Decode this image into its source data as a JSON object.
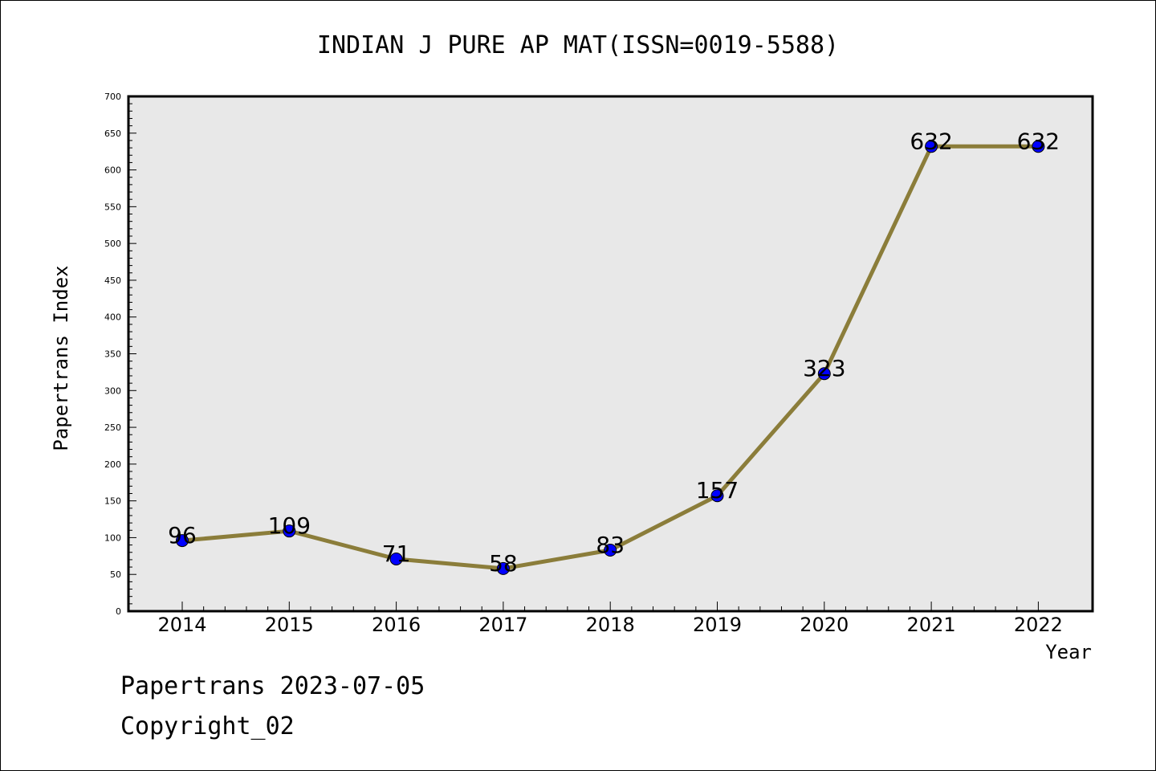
{
  "chart_data": {
    "type": "line",
    "title": "INDIAN J PURE AP MAT(ISSN=0019-5588)",
    "xlabel": "Year",
    "ylabel": "Papertrans Index",
    "categories": [
      "2014",
      "2015",
      "2016",
      "2017",
      "2018",
      "2019",
      "2020",
      "2021",
      "2022"
    ],
    "values": [
      96,
      109,
      71,
      58,
      83,
      157,
      323,
      632,
      632
    ],
    "data_labels": [
      "96",
      "109",
      "71",
      "58",
      "83",
      "157",
      "323",
      "632",
      "632"
    ],
    "ylim": [
      0,
      700
    ],
    "yticks": [
      "0",
      "50",
      "100",
      "150",
      "200",
      "250",
      "300",
      "350",
      "400",
      "450",
      "500",
      "550",
      "600",
      "650",
      "700"
    ],
    "grid": false,
    "legend": "none",
    "colors": {
      "line": "#8b7d3a",
      "marker": "#0000ff",
      "plot_background": "#e8e8e8"
    }
  },
  "footer": {
    "line1": "Papertrans 2023-07-05",
    "line2": "Copyright_02"
  }
}
